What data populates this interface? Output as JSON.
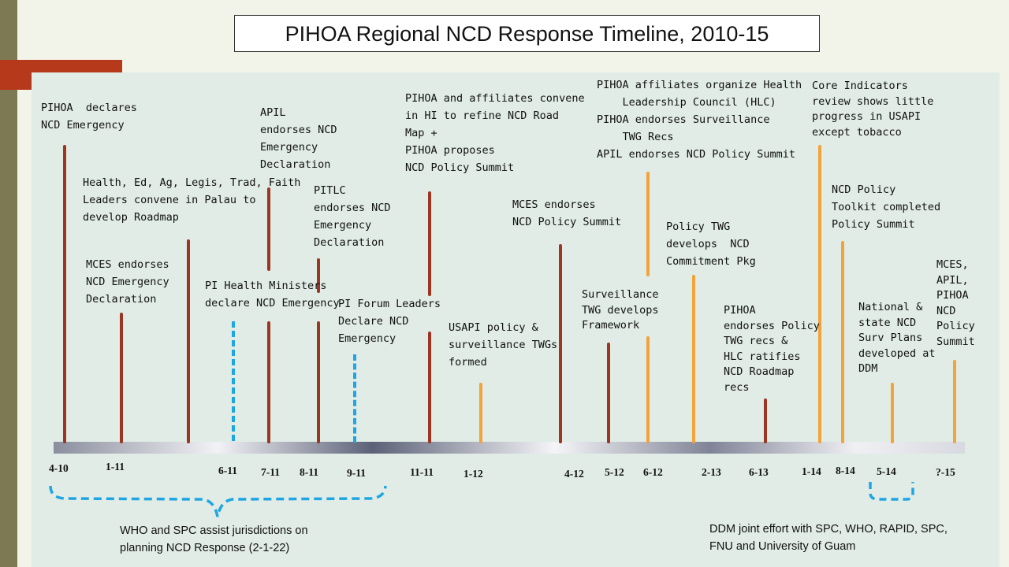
{
  "title": "PIHOA Regional NCD Response Timeline, 2010-15",
  "colors": {
    "red_line": "#9e3523",
    "orange_line": "#f2a33b",
    "dashed_line": "#1ea6e4",
    "accent": "#b5391a"
  },
  "events": {
    "e1": "PIHOA  declares\nNCD Emergency",
    "e2": "Health, Ed, Ag, Legis, Trad, Faith\nLeaders convene in Palau to\ndevelop Roadmap",
    "e3": "MCES endorses\nNCD Emergency\nDeclaration",
    "e4": "APIL\nendorses NCD\nEmergency\nDeclaration",
    "e5": "PI Health Ministers\ndeclare NCD Emergency",
    "e6": "PITLC\nendorses NCD\nEmergency\nDeclaration",
    "e7": "PI Forum Leaders\nDeclare NCD\nEmergency",
    "e8": "PIHOA and affiliates convene\nin HI to refine NCD Road\nMap +\nPIHOA proposes\nNCD Policy Summit",
    "e9": "USAPI policy &\nsurveillance TWGs\nformed",
    "e10": "MCES endorses\nNCD Policy Summit",
    "e11": "PIHOA affiliates organize Health\n    Leadership Council (HLC)\nPIHOA endorses Surveillance\n    TWG Recs\nAPIL endorses NCD Policy Summit",
    "e12": "Surveillance\nTWG develops\nFramework",
    "e13": "Policy TWG\ndevelops  NCD\nCommitment Pkg",
    "e14": "PIHOA\nendorses Policy\nTWG recs &\nHLC ratifies\nNCD Roadmap\nrecs",
    "e15": "Core Indicators\nreview shows little\nprogress in USAPI\nexcept tobacco",
    "e16": "NCD Policy\nToolkit completed\nPolicy Summit",
    "e17": "National &\nstate NCD\nSurv Plans\ndeveloped at\nDDM",
    "e18": "MCES,\nAPIL,\nPIHOA\nNCD\nPolicy\nSummit"
  },
  "dates": [
    "4-10",
    "1-11",
    "6-11",
    "7-11",
    "8-11",
    "9-11",
    "11-11",
    "1-12",
    "4-12",
    "5-12",
    "6-12",
    "2-13",
    "6-13",
    "1-14",
    "8-14",
    "5-14",
    "?-15"
  ],
  "notes": {
    "who_spc": "WHO and SPC assist jurisdictions on\nplanning NCD Response (2-1-22)",
    "ddm": "DDM joint effort with SPC, WHO, RAPID, SPC,\nFNU and University of Guam"
  }
}
